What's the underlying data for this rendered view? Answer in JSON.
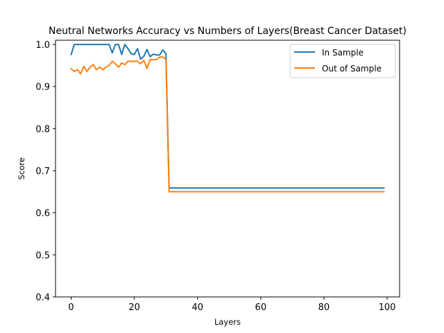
{
  "chart_data": {
    "type": "line",
    "title": "Neutral Networks Accuracy vs Numbers of Layers(Breast Cancer Dataset)",
    "xlabel": "Layers",
    "ylabel": "Score",
    "xlim": [
      -4.95,
      103.95
    ],
    "ylim": [
      0.4,
      1.01
    ],
    "xticks": [
      0,
      20,
      40,
      60,
      80,
      100
    ],
    "yticks": [
      0.4,
      0.5,
      0.6,
      0.7,
      0.8,
      0.9,
      1.0
    ],
    "xtick_labels": [
      "0",
      "20",
      "40",
      "60",
      "80",
      "100"
    ],
    "ytick_labels": [
      "0.4",
      "0.5",
      "0.6",
      "0.7",
      "0.8",
      "0.9",
      "1.0"
    ],
    "legend_position": "top-right",
    "grid": false,
    "series": [
      {
        "name": "In Sample",
        "color": "#1f77b4",
        "points": [
          [
            0,
            0.976
          ],
          [
            1,
            1.0
          ],
          [
            2,
            1.0
          ],
          [
            3,
            1.0
          ],
          [
            4,
            1.0
          ],
          [
            5,
            1.0
          ],
          [
            6,
            1.0
          ],
          [
            7,
            1.0
          ],
          [
            8,
            1.0
          ],
          [
            9,
            1.0
          ],
          [
            10,
            1.0
          ],
          [
            11,
            1.0
          ],
          [
            12,
            1.0
          ],
          [
            13,
            0.98
          ],
          [
            14,
            1.0
          ],
          [
            15,
            1.0
          ],
          [
            16,
            0.976
          ],
          [
            17,
            1.0
          ],
          [
            18,
            0.99
          ],
          [
            19,
            0.978
          ],
          [
            20,
            0.976
          ],
          [
            21,
            0.99
          ],
          [
            22,
            0.965
          ],
          [
            23,
            0.972
          ],
          [
            24,
            0.988
          ],
          [
            25,
            0.971
          ],
          [
            26,
            0.977
          ],
          [
            27,
            0.975
          ],
          [
            28,
            0.975
          ],
          [
            29,
            0.987
          ],
          [
            30,
            0.978
          ],
          [
            31,
            0.659
          ],
          [
            99,
            0.659
          ]
        ]
      },
      {
        "name": "Out of Sample",
        "color": "#ff7f0e",
        "points": [
          [
            0,
            0.942
          ],
          [
            1,
            0.936
          ],
          [
            2,
            0.94
          ],
          [
            3,
            0.93
          ],
          [
            4,
            0.948
          ],
          [
            5,
            0.936
          ],
          [
            6,
            0.946
          ],
          [
            7,
            0.952
          ],
          [
            8,
            0.94
          ],
          [
            9,
            0.946
          ],
          [
            10,
            0.94
          ],
          [
            11,
            0.946
          ],
          [
            12,
            0.95
          ],
          [
            13,
            0.96
          ],
          [
            14,
            0.954
          ],
          [
            15,
            0.946
          ],
          [
            16,
            0.956
          ],
          [
            17,
            0.952
          ],
          [
            18,
            0.96
          ],
          [
            19,
            0.96
          ],
          [
            20,
            0.96
          ],
          [
            21,
            0.96
          ],
          [
            22,
            0.954
          ],
          [
            23,
            0.962
          ],
          [
            24,
            0.943
          ],
          [
            25,
            0.964
          ],
          [
            26,
            0.964
          ],
          [
            27,
            0.964
          ],
          [
            28,
            0.97
          ],
          [
            29,
            0.97
          ],
          [
            30,
            0.965
          ],
          [
            31,
            0.65
          ],
          [
            99,
            0.65
          ]
        ]
      }
    ]
  }
}
